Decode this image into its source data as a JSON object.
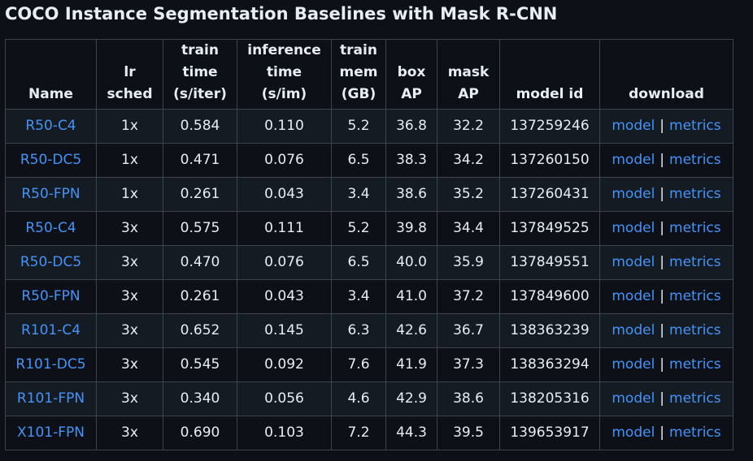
{
  "title": "COCO Instance Segmentation Baselines with Mask R-CNN",
  "columns": [
    [
      "Name"
    ],
    [
      "lr",
      "sched"
    ],
    [
      "train",
      "time",
      "(s/iter)"
    ],
    [
      "inference",
      "time",
      "(s/im)"
    ],
    [
      "train",
      "mem",
      "(GB)"
    ],
    [
      "box",
      "AP"
    ],
    [
      "mask",
      "AP"
    ],
    [
      "model id"
    ],
    [
      "download"
    ]
  ],
  "download_labels": {
    "model": "model",
    "separator": "|",
    "metrics": "metrics"
  },
  "rows": [
    {
      "name": "R50-C4",
      "lr_sched": "1x",
      "train_time": "0.584",
      "inference_time": "0.110",
      "train_mem": "5.2",
      "box_ap": "36.8",
      "mask_ap": "32.2",
      "model_id": "137259246"
    },
    {
      "name": "R50-DC5",
      "lr_sched": "1x",
      "train_time": "0.471",
      "inference_time": "0.076",
      "train_mem": "6.5",
      "box_ap": "38.3",
      "mask_ap": "34.2",
      "model_id": "137260150"
    },
    {
      "name": "R50-FPN",
      "lr_sched": "1x",
      "train_time": "0.261",
      "inference_time": "0.043",
      "train_mem": "3.4",
      "box_ap": "38.6",
      "mask_ap": "35.2",
      "model_id": "137260431"
    },
    {
      "name": "R50-C4",
      "lr_sched": "3x",
      "train_time": "0.575",
      "inference_time": "0.111",
      "train_mem": "5.2",
      "box_ap": "39.8",
      "mask_ap": "34.4",
      "model_id": "137849525"
    },
    {
      "name": "R50-DC5",
      "lr_sched": "3x",
      "train_time": "0.470",
      "inference_time": "0.076",
      "train_mem": "6.5",
      "box_ap": "40.0",
      "mask_ap": "35.9",
      "model_id": "137849551"
    },
    {
      "name": "R50-FPN",
      "lr_sched": "3x",
      "train_time": "0.261",
      "inference_time": "0.043",
      "train_mem": "3.4",
      "box_ap": "41.0",
      "mask_ap": "37.2",
      "model_id": "137849600"
    },
    {
      "name": "R101-C4",
      "lr_sched": "3x",
      "train_time": "0.652",
      "inference_time": "0.145",
      "train_mem": "6.3",
      "box_ap": "42.6",
      "mask_ap": "36.7",
      "model_id": "138363239"
    },
    {
      "name": "R101-DC5",
      "lr_sched": "3x",
      "train_time": "0.545",
      "inference_time": "0.092",
      "train_mem": "7.6",
      "box_ap": "41.9",
      "mask_ap": "37.3",
      "model_id": "138363294"
    },
    {
      "name": "R101-FPN",
      "lr_sched": "3x",
      "train_time": "0.340",
      "inference_time": "0.056",
      "train_mem": "4.6",
      "box_ap": "42.9",
      "mask_ap": "38.6",
      "model_id": "138205316"
    },
    {
      "name": "X101-FPN",
      "lr_sched": "3x",
      "train_time": "0.690",
      "inference_time": "0.103",
      "train_mem": "7.2",
      "box_ap": "44.3",
      "mask_ap": "39.5",
      "model_id": "139653917"
    }
  ],
  "colors": {
    "background": "#0d1117",
    "row_stripe": "#151b23",
    "border": "#3d444d",
    "text": "#e6edf3",
    "link": "#4493f8"
  }
}
